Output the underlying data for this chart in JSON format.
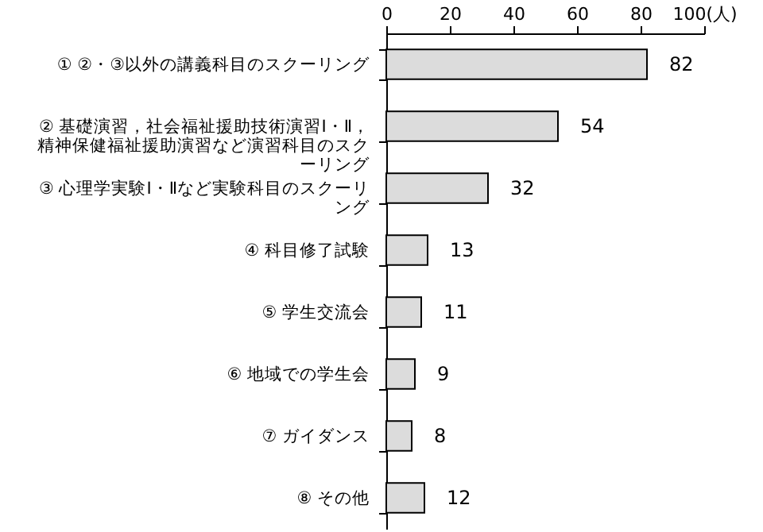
{
  "chart_data": {
    "type": "bar",
    "orientation": "horizontal",
    "categories": [
      "① ②・③以外の講義科目のスクーリング",
      "② 基礎演習，社会福祉援助技術演習Ⅰ・Ⅱ，精神保健福祉援助演習など演習科目のスクーリング",
      "③ 心理学実験Ⅰ・Ⅱなど実験科目のスクーリング",
      "④ 科目修了試験",
      "⑤ 学生交流会",
      "⑥ 地域での学生会",
      "⑦ ガイダンス",
      "⑧ その他"
    ],
    "values": [
      82,
      54,
      32,
      13,
      11,
      9,
      8,
      12
    ],
    "color": "#dcdcdc",
    "xlim": [
      0,
      100
    ],
    "xticks": [
      0,
      20,
      40,
      60,
      80,
      {
        "value": 100,
        "label": "100(人)"
      }
    ],
    "data_labels": true,
    "grid": false
  }
}
